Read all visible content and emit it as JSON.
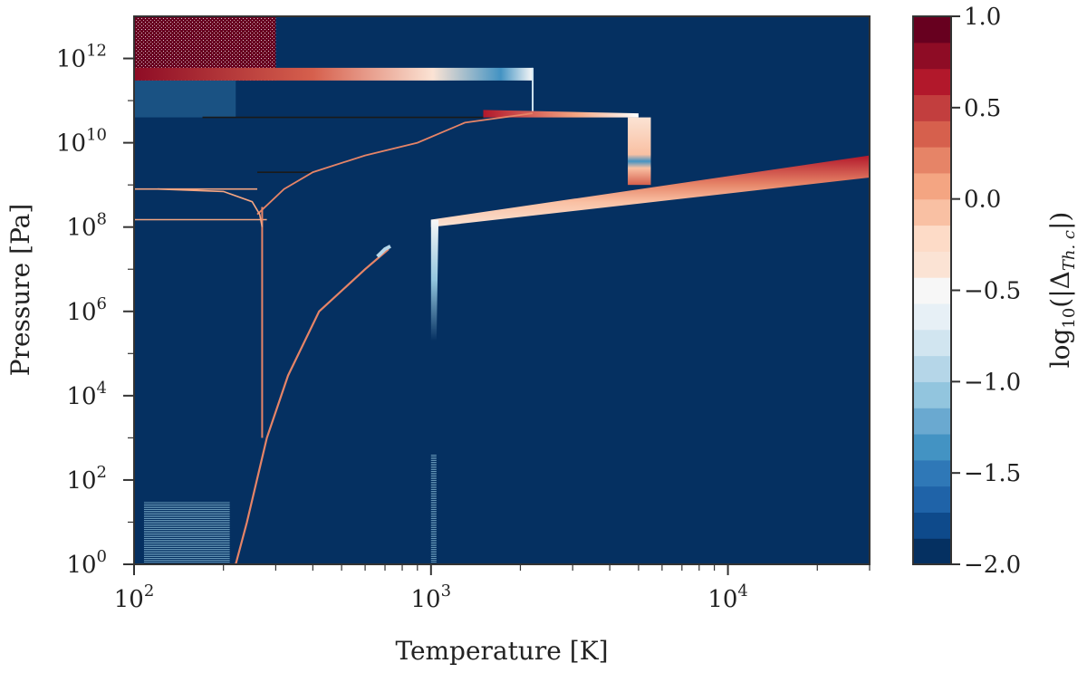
{
  "chart_data": {
    "type": "heatmap",
    "xlabel": "Temperature [K]",
    "ylabel": "Pressure [Pa]",
    "x_scale": "log",
    "y_scale": "log",
    "xlim": [
      100,
      30000
    ],
    "ylim": [
      1,
      10000000000000
    ],
    "x_ticks": [
      {
        "value": 100,
        "base": "10",
        "exp": "2"
      },
      {
        "value": 1000,
        "base": "10",
        "exp": "3"
      },
      {
        "value": 10000,
        "base": "10",
        "exp": "4"
      }
    ],
    "y_ticks": [
      {
        "value": 1,
        "base": "10",
        "exp": "0"
      },
      {
        "value": 100,
        "base": "10",
        "exp": "2"
      },
      {
        "value": 10000,
        "base": "10",
        "exp": "4"
      },
      {
        "value": 1000000,
        "base": "10",
        "exp": "6"
      },
      {
        "value": 100000000,
        "base": "10",
        "exp": "8"
      },
      {
        "value": 10000000000,
        "base": "10",
        "exp": "10"
      },
      {
        "value": 1000000000000,
        "base": "10",
        "exp": "12"
      }
    ],
    "colorbar": {
      "label": "log10(|Δ Th. c|)",
      "label_parts": {
        "func": "log",
        "sub": "10",
        "open": "(|Δ",
        "delta_sub": "Th. c",
        "close": "|)"
      },
      "min": -2.0,
      "max": 1.0,
      "tick_values": [
        -2.0,
        -1.5,
        -1.0,
        -0.5,
        0.0,
        0.5,
        1.0
      ],
      "tick_labels": [
        "−2.0",
        "−1.5",
        "−1.0",
        "−0.5",
        "0.0",
        "0.5",
        "1.0"
      ],
      "levels": 20,
      "colors": [
        "#053061",
        "#0e4a8b",
        "#1f63a8",
        "#2f78b7",
        "#4393c3",
        "#6aa9d0",
        "#92c5de",
        "#b5d6e8",
        "#d1e5f0",
        "#e7f0f6",
        "#f7f7f7",
        "#fbe3d4",
        "#fddbc7",
        "#f9c0a3",
        "#f4a582",
        "#e68467",
        "#d6604d",
        "#c23e3e",
        "#b2182b",
        "#8e0c25",
        "#67001f"
      ],
      "background_value": -2.0,
      "background_color": "#053061"
    },
    "features": [
      {
        "name": "noisy-block",
        "x": [
          100,
          300
        ],
        "y": [
          300000000000,
          10000000000000
        ],
        "level": 1.0,
        "noise": true
      },
      {
        "name": "band-top",
        "points": [
          [
            100,
            300000000000
          ],
          [
            2200,
            300000000000
          ],
          [
            2200,
            600000000000
          ],
          [
            100,
            600000000000
          ]
        ],
        "value_start": 1.0,
        "value_end": -2.0
      },
      {
        "name": "band-mid",
        "points": [
          [
            1500,
            40000000000
          ],
          [
            5000,
            40000000000
          ],
          [
            5000,
            50000000000
          ],
          [
            1500,
            60000000000
          ]
        ],
        "value_start": 0.8,
        "value_end": -0.3
      },
      {
        "name": "rect-vertical",
        "x": [
          4600,
          5500
        ],
        "y": [
          1000000000,
          40000000000
        ],
        "level": -0.1
      },
      {
        "name": "band-diagonal",
        "points": [
          [
            1000,
            100000000
          ],
          [
            30000,
            1500000000
          ],
          [
            30000,
            5000000000
          ],
          [
            1000,
            150000000
          ]
        ],
        "value_start": -0.3,
        "value_end": 0.6
      },
      {
        "name": "spike-1000",
        "x": [
          1000,
          1060
        ],
        "y": [
          200000,
          150000000
        ],
        "value": -1.2
      },
      {
        "name": "curve-condensation",
        "points": [
          [
            220,
            1
          ],
          [
            240,
            10
          ],
          [
            280,
            1000
          ],
          [
            330,
            30000
          ],
          [
            420,
            1000000
          ],
          [
            600,
            10000000
          ],
          [
            720,
            30000000
          ]
        ],
        "value": 0.3
      },
      {
        "name": "vertical-line-270",
        "x": 270,
        "y": [
          1000,
          300000000
        ],
        "value": 0.3
      },
      {
        "name": "curve-upper",
        "points": [
          [
            260,
            200000000
          ],
          [
            320,
            800000000
          ],
          [
            400,
            2000000000
          ],
          [
            600,
            5000000000
          ],
          [
            900,
            10000000000
          ],
          [
            1300,
            30000000000
          ],
          [
            2200,
            50000000000
          ]
        ],
        "value": 0.3
      }
    ]
  }
}
